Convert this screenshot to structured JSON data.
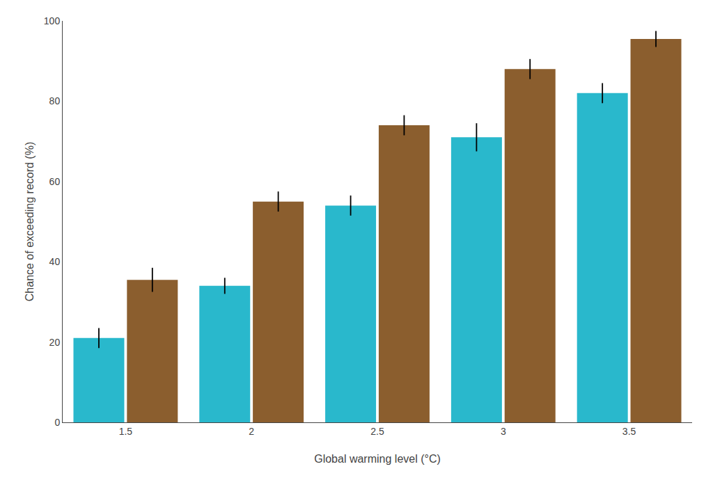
{
  "chart_data": {
    "type": "bar",
    "categories": [
      "1.5",
      "2",
      "2.5",
      "3",
      "3.5"
    ],
    "series": [
      {
        "color": "#29B8CC",
        "values": [
          21,
          34,
          54,
          71,
          82
        ],
        "errors": [
          2.5,
          2.0,
          2.5,
          3.5,
          2.5
        ]
      },
      {
        "color": "#8B5E2E",
        "values": [
          35.5,
          55,
          74,
          88,
          95.5
        ],
        "errors": [
          3.0,
          2.5,
          2.5,
          2.5,
          2.0
        ]
      }
    ],
    "xlabel": "Global warming level (°C)",
    "ylabel": "Chance of exceeding record (%)",
    "ylim": [
      0,
      100
    ],
    "yticks": [
      0,
      20,
      40,
      60,
      80,
      100
    ],
    "grid": false
  }
}
